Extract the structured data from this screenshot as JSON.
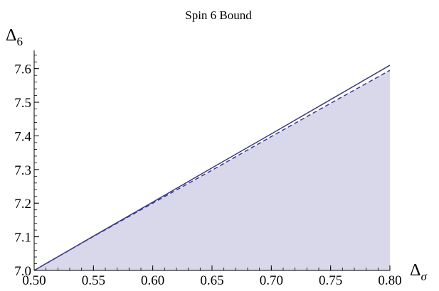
{
  "chart_data": {
    "type": "area",
    "title": "Spin 6 Bound",
    "xlabel": {
      "symbol": "Δ",
      "subscript": "σ"
    },
    "ylabel": {
      "symbol": "Δ",
      "subscript": "6"
    },
    "xlim": [
      0.5,
      0.8
    ],
    "ylim": [
      7.0,
      7.65
    ],
    "x_ticks": [
      "0.50",
      "0.55",
      "0.60",
      "0.65",
      "0.70",
      "0.75",
      "0.80"
    ],
    "y_ticks": [
      "7.0",
      "7.1",
      "7.2",
      "7.3",
      "7.4",
      "7.5",
      "7.6"
    ],
    "grid": false,
    "series": [
      {
        "style": "solid",
        "color": "#3a3a8c",
        "x": [
          0.5,
          0.55,
          0.6,
          0.65,
          0.7,
          0.75,
          0.8
        ],
        "y": [
          7.0,
          7.102,
          7.203,
          7.305,
          7.406,
          7.508,
          7.61
        ]
      },
      {
        "style": "dashed",
        "color": "#3a3a8c",
        "x": [
          0.5,
          0.55,
          0.6,
          0.65,
          0.7,
          0.75,
          0.8
        ],
        "y": [
          7.0,
          7.101,
          7.2,
          7.298,
          7.398,
          7.497,
          7.595
        ]
      }
    ],
    "fill": {
      "color": "#d8d8ea",
      "under_series": 1
    }
  }
}
